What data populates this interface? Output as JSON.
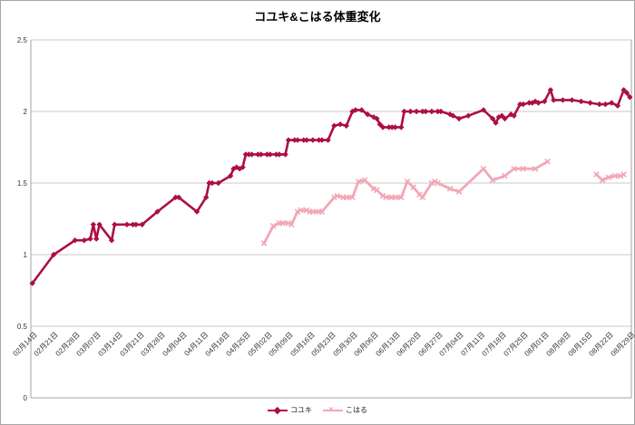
{
  "title": "コユキ&こはる体重変化",
  "chart_data": {
    "type": "line",
    "title": "コユキ&こはる体重変化",
    "ylabel": "",
    "xlabel": "",
    "ylim": [
      0,
      2.5
    ],
    "y_ticks": [
      0,
      0.5,
      1,
      1.5,
      2,
      2.5
    ],
    "y_tick_labels": [
      "0",
      "0.5",
      "1",
      "1.5",
      "2",
      "2.5"
    ],
    "grid": "horizontal",
    "legend_position": "bottom-center",
    "x_axis_type": "daily-categories",
    "x_total_days": 197,
    "x_tick_interval_days": 7,
    "x_tick_labels": [
      "02月14日",
      "02月21日",
      "02月28日",
      "03月07日",
      "03月14日",
      "03月21日",
      "03月28日",
      "04月04日",
      "04月11日",
      "04月18日",
      "04月25日",
      "05月02日",
      "05月09日",
      "05月16日",
      "05月23日",
      "05月30日",
      "06月06日",
      "06月13日",
      "06月20日",
      "06月27日",
      "07月04日",
      "07月11日",
      "07月18日",
      "07月25日",
      "08月01日",
      "08月08日",
      "08月15日",
      "08月22日",
      "08月29日"
    ],
    "colors": {
      "series1": "#ad0e47",
      "series2": "#f2a7b6",
      "gridline": "#c9c9c9",
      "frame": "#a3a3a3",
      "text": "#333333"
    },
    "series": [
      {
        "name": "コユキ",
        "color": "#ad0e47",
        "marker": "diamond",
        "line_width": 2.6,
        "points": [
          [
            0,
            0.8
          ],
          [
            7,
            1.0
          ],
          [
            14,
            1.1
          ],
          [
            17,
            1.1
          ],
          [
            19,
            1.11
          ],
          [
            20,
            1.21
          ],
          [
            21,
            1.11
          ],
          [
            22,
            1.21
          ],
          [
            26,
            1.1
          ],
          [
            27,
            1.21
          ],
          [
            31,
            1.21
          ],
          [
            33,
            1.21
          ],
          [
            34,
            1.21
          ],
          [
            36,
            1.21
          ],
          [
            41,
            1.3
          ],
          [
            47,
            1.4
          ],
          [
            48,
            1.4
          ],
          [
            54,
            1.3
          ],
          [
            57,
            1.4
          ],
          [
            58,
            1.5
          ],
          [
            59,
            1.5
          ],
          [
            61,
            1.5
          ],
          [
            65,
            1.55
          ],
          [
            66,
            1.6
          ],
          [
            67,
            1.61
          ],
          [
            68,
            1.6
          ],
          [
            69,
            1.61
          ],
          [
            70,
            1.7
          ],
          [
            71,
            1.7
          ],
          [
            72,
            1.7
          ],
          [
            74,
            1.7
          ],
          [
            75,
            1.7
          ],
          [
            77,
            1.7
          ],
          [
            78,
            1.7
          ],
          [
            80,
            1.7
          ],
          [
            81,
            1.7
          ],
          [
            83,
            1.7
          ],
          [
            84,
            1.8
          ],
          [
            86,
            1.8
          ],
          [
            87,
            1.8
          ],
          [
            89,
            1.8
          ],
          [
            90,
            1.8
          ],
          [
            92,
            1.8
          ],
          [
            94,
            1.8
          ],
          [
            95,
            1.8
          ],
          [
            97,
            1.8
          ],
          [
            99,
            1.9
          ],
          [
            101,
            1.91
          ],
          [
            103,
            1.9
          ],
          [
            105,
            2.0
          ],
          [
            106,
            2.01
          ],
          [
            108,
            2.01
          ],
          [
            110,
            1.98
          ],
          [
            112,
            1.96
          ],
          [
            113,
            1.95
          ],
          [
            114,
            1.91
          ],
          [
            115,
            1.89
          ],
          [
            117,
            1.89
          ],
          [
            118,
            1.89
          ],
          [
            119,
            1.89
          ],
          [
            121,
            1.89
          ],
          [
            122,
            2.0
          ],
          [
            124,
            2.0
          ],
          [
            126,
            2.0
          ],
          [
            128,
            2.0
          ],
          [
            129,
            2.0
          ],
          [
            131,
            2.0
          ],
          [
            133,
            2.0
          ],
          [
            134,
            2.0
          ],
          [
            137,
            1.98
          ],
          [
            138,
            1.97
          ],
          [
            140,
            1.95
          ],
          [
            143,
            1.97
          ],
          [
            148,
            2.01
          ],
          [
            151,
            1.95
          ],
          [
            152,
            1.92
          ],
          [
            153,
            1.96
          ],
          [
            154,
            1.97
          ],
          [
            155,
            1.95
          ],
          [
            157,
            1.98
          ],
          [
            158,
            1.97
          ],
          [
            160,
            2.05
          ],
          [
            161,
            2.05
          ],
          [
            163,
            2.06
          ],
          [
            164,
            2.06
          ],
          [
            165,
            2.07
          ],
          [
            166,
            2.06
          ],
          [
            168,
            2.07
          ],
          [
            170,
            2.15
          ],
          [
            171,
            2.08
          ],
          [
            174,
            2.08
          ],
          [
            177,
            2.08
          ],
          [
            180,
            2.07
          ],
          [
            183,
            2.06
          ],
          [
            186,
            2.05
          ],
          [
            188,
            2.05
          ],
          [
            190,
            2.06
          ],
          [
            192,
            2.04
          ],
          [
            194,
            2.15
          ],
          [
            195,
            2.13
          ],
          [
            196,
            2.1
          ]
        ]
      },
      {
        "name": "こはる",
        "color": "#f2a7b6",
        "marker": "x",
        "line_width": 2.8,
        "points": [
          [
            76,
            1.08
          ],
          [
            79,
            1.2
          ],
          [
            81,
            1.22
          ],
          [
            82,
            1.22
          ],
          [
            84,
            1.22
          ],
          [
            85,
            1.21
          ],
          [
            87,
            1.3
          ],
          [
            88,
            1.31
          ],
          [
            90,
            1.31
          ],
          [
            91,
            1.3
          ],
          [
            92,
            1.3
          ],
          [
            94,
            1.3
          ],
          [
            95,
            1.3
          ],
          [
            99,
            1.4
          ],
          [
            100,
            1.41
          ],
          [
            102,
            1.4
          ],
          [
            103,
            1.4
          ],
          [
            105,
            1.4
          ],
          [
            107,
            1.51
          ],
          [
            109,
            1.52
          ],
          [
            112,
            1.46
          ],
          [
            113,
            1.45
          ],
          [
            115,
            1.41
          ],
          [
            116,
            1.4
          ],
          [
            118,
            1.4
          ],
          [
            119,
            1.4
          ],
          [
            121,
            1.4
          ],
          [
            123,
            1.51
          ],
          [
            125,
            1.47
          ],
          [
            127,
            1.42
          ],
          [
            128,
            1.4
          ],
          [
            131,
            1.5
          ],
          [
            132,
            1.51
          ],
          [
            133,
            1.5
          ],
          [
            137,
            1.46
          ],
          [
            140,
            1.44
          ],
          [
            148,
            1.6
          ],
          [
            151,
            1.52
          ],
          [
            155,
            1.55
          ],
          [
            158,
            1.6
          ],
          [
            161,
            1.6
          ],
          [
            165,
            1.6
          ],
          [
            169,
            1.65
          ],
          null,
          [
            185,
            1.56
          ],
          [
            187,
            1.52
          ],
          [
            189,
            1.54
          ],
          [
            191,
            1.55
          ],
          [
            193,
            1.55
          ],
          [
            194,
            1.56
          ]
        ]
      }
    ]
  },
  "legend": {
    "series1_label": "コユキ",
    "series2_label": "こはる"
  }
}
